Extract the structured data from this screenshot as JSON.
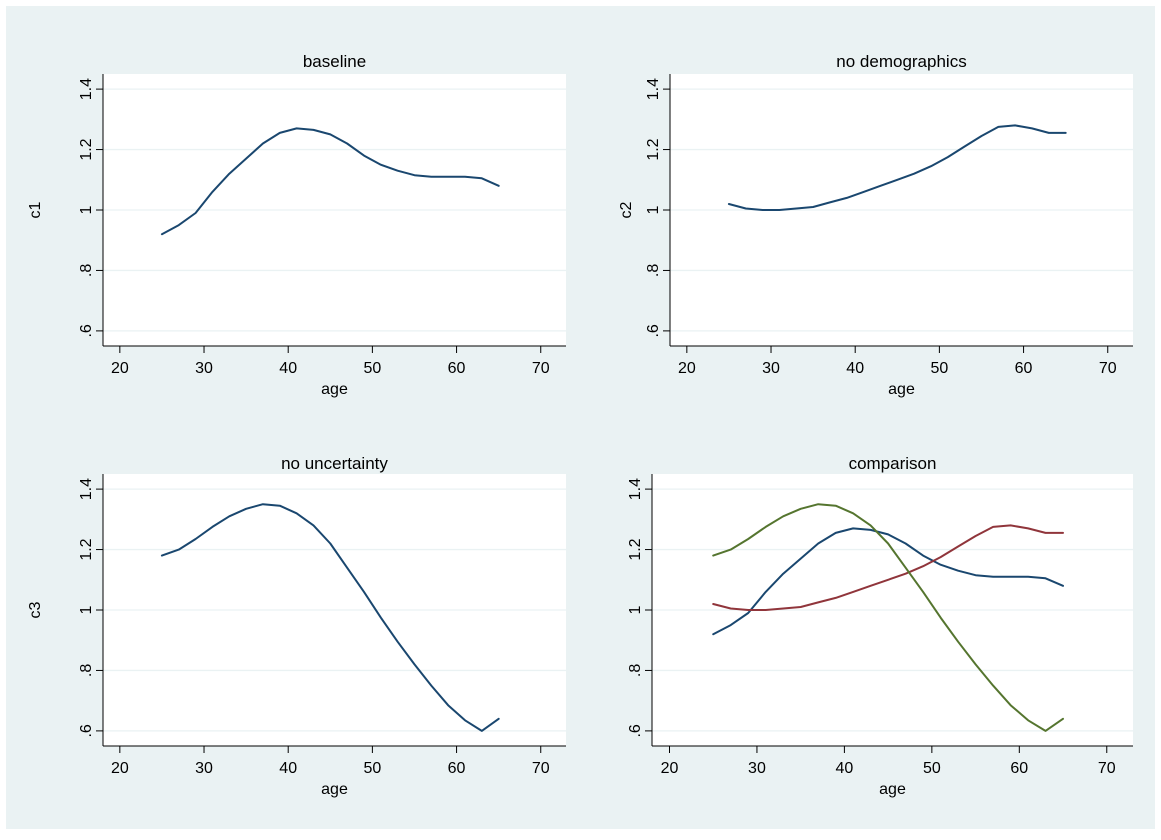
{
  "figure": {
    "background": "#eaf2f3",
    "plot_background": "#ffffff",
    "grid_color": "#eaf2f3"
  },
  "chart_data": [
    {
      "type": "line",
      "title": "baseline",
      "xlabel": "age",
      "ylabel": "c1",
      "xlim": [
        18,
        73
      ],
      "ylim": [
        0.55,
        1.45
      ],
      "xticks": [
        20,
        30,
        40,
        50,
        60,
        70
      ],
      "xtick_labels": [
        "20",
        "30",
        "40",
        "50",
        "60",
        "70"
      ],
      "yticks": [
        0.6,
        0.8,
        1.0,
        1.2,
        1.4
      ],
      "ytick_labels": [
        ".6",
        ".8",
        "1",
        "1.2",
        "1.4"
      ],
      "grid": true,
      "series": [
        {
          "color": "#1a476f",
          "x": [
            25,
            27,
            29,
            31,
            33,
            35,
            37,
            39,
            41,
            43,
            45,
            47,
            49,
            51,
            53,
            55,
            57,
            59,
            61,
            63,
            65
          ],
          "y": [
            0.92,
            0.95,
            0.99,
            1.06,
            1.12,
            1.17,
            1.22,
            1.255,
            1.27,
            1.265,
            1.25,
            1.22,
            1.18,
            1.15,
            1.13,
            1.115,
            1.11,
            1.11,
            1.11,
            1.105,
            1.08
          ]
        }
      ]
    },
    {
      "type": "line",
      "title": "no demographics",
      "xlabel": "age",
      "ylabel": "c2",
      "xlim": [
        18,
        73
      ],
      "ylim": [
        0.55,
        1.45
      ],
      "xticks": [
        20,
        30,
        40,
        50,
        60,
        70
      ],
      "xtick_labels": [
        "20",
        "30",
        "40",
        "50",
        "60",
        "70"
      ],
      "yticks": [
        0.6,
        0.8,
        1.0,
        1.2,
        1.4
      ],
      "ytick_labels": [
        ".6",
        ".8",
        "1",
        "1.2",
        "1.4"
      ],
      "grid": true,
      "series": [
        {
          "color": "#1a476f",
          "x": [
            25,
            27,
            29,
            31,
            33,
            35,
            37,
            39,
            41,
            43,
            45,
            47,
            49,
            51,
            53,
            55,
            57,
            59,
            61,
            63,
            65
          ],
          "y": [
            1.02,
            1.005,
            1.0,
            1.0,
            1.005,
            1.01,
            1.025,
            1.04,
            1.06,
            1.08,
            1.1,
            1.12,
            1.145,
            1.175,
            1.21,
            1.245,
            1.275,
            1.28,
            1.27,
            1.255,
            1.255
          ]
        }
      ]
    },
    {
      "type": "line",
      "title": "no uncertainty",
      "xlabel": "age",
      "ylabel": "c3",
      "xlim": [
        18,
        73
      ],
      "ylim": [
        0.55,
        1.45
      ],
      "xticks": [
        20,
        30,
        40,
        50,
        60,
        70
      ],
      "xtick_labels": [
        "20",
        "30",
        "40",
        "50",
        "60",
        "70"
      ],
      "yticks": [
        0.6,
        0.8,
        1.0,
        1.2,
        1.4
      ],
      "ytick_labels": [
        ".6",
        ".8",
        "1",
        "1.2",
        "1.4"
      ],
      "grid": true,
      "series": [
        {
          "color": "#1a476f",
          "x": [
            25,
            27,
            29,
            31,
            33,
            35,
            37,
            39,
            41,
            43,
            45,
            47,
            49,
            51,
            53,
            55,
            57,
            59,
            61,
            63,
            65
          ],
          "y": [
            1.18,
            1.2,
            1.235,
            1.275,
            1.31,
            1.335,
            1.35,
            1.345,
            1.32,
            1.28,
            1.22,
            1.14,
            1.06,
            0.975,
            0.895,
            0.82,
            0.75,
            0.685,
            0.635,
            0.6,
            0.64
          ]
        }
      ]
    },
    {
      "type": "line",
      "title": "comparison",
      "xlabel": "age",
      "ylabel": "",
      "xlim": [
        18,
        73
      ],
      "ylim": [
        0.55,
        1.45
      ],
      "xticks": [
        20,
        30,
        40,
        50,
        60,
        70
      ],
      "xtick_labels": [
        "20",
        "30",
        "40",
        "50",
        "60",
        "70"
      ],
      "yticks": [
        0.6,
        0.8,
        1.0,
        1.2,
        1.4
      ],
      "ytick_labels": [
        ".6",
        ".8",
        "1",
        "1.2",
        "1.4"
      ],
      "grid": true,
      "series": [
        {
          "color": "#1a476f",
          "x": [
            25,
            27,
            29,
            31,
            33,
            35,
            37,
            39,
            41,
            43,
            45,
            47,
            49,
            51,
            53,
            55,
            57,
            59,
            61,
            63,
            65
          ],
          "y": [
            0.92,
            0.95,
            0.99,
            1.06,
            1.12,
            1.17,
            1.22,
            1.255,
            1.27,
            1.265,
            1.25,
            1.22,
            1.18,
            1.15,
            1.13,
            1.115,
            1.11,
            1.11,
            1.11,
            1.105,
            1.08
          ]
        },
        {
          "color": "#90353b",
          "x": [
            25,
            27,
            29,
            31,
            33,
            35,
            37,
            39,
            41,
            43,
            45,
            47,
            49,
            51,
            53,
            55,
            57,
            59,
            61,
            63,
            65
          ],
          "y": [
            1.02,
            1.005,
            1.0,
            1.0,
            1.005,
            1.01,
            1.025,
            1.04,
            1.06,
            1.08,
            1.1,
            1.12,
            1.145,
            1.175,
            1.21,
            1.245,
            1.275,
            1.28,
            1.27,
            1.255,
            1.255
          ]
        },
        {
          "color": "#55752f",
          "x": [
            25,
            27,
            29,
            31,
            33,
            35,
            37,
            39,
            41,
            43,
            45,
            47,
            49,
            51,
            53,
            55,
            57,
            59,
            61,
            63,
            65
          ],
          "y": [
            1.18,
            1.2,
            1.235,
            1.275,
            1.31,
            1.335,
            1.35,
            1.345,
            1.32,
            1.28,
            1.22,
            1.14,
            1.06,
            0.975,
            0.895,
            0.82,
            0.75,
            0.685,
            0.635,
            0.6,
            0.64
          ]
        }
      ]
    }
  ]
}
